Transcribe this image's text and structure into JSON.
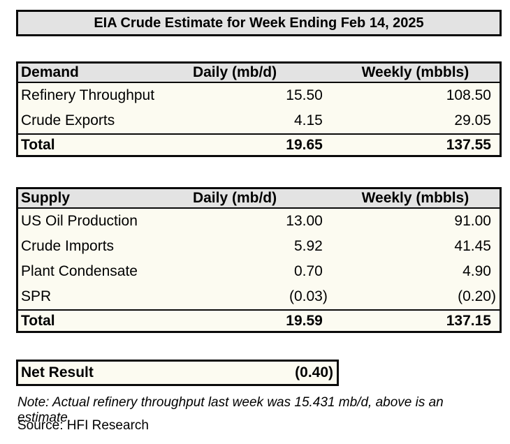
{
  "title": "EIA Crude Estimate for Week Ending Feb 14, 2025",
  "demand_table": {
    "headers": [
      "Demand",
      "Daily (mb/d)",
      "Weekly (mbbls)"
    ],
    "rows": [
      {
        "label": "Refinery Throughput",
        "daily": "15.50",
        "weekly": "108.50"
      },
      {
        "label": "Crude Exports",
        "daily": "4.15",
        "weekly": "29.05"
      }
    ],
    "total": {
      "label": "Total",
      "daily": "19.65",
      "weekly": "137.55"
    }
  },
  "supply_table": {
    "headers": [
      "Supply",
      "Daily (mb/d)",
      "Weekly (mbbls)"
    ],
    "rows": [
      {
        "label": "US Oil Production",
        "daily": "13.00",
        "weekly": "91.00"
      },
      {
        "label": "Crude Imports",
        "daily": "5.92",
        "weekly": "41.45"
      },
      {
        "label": "Plant Condensate",
        "daily": "0.70",
        "weekly": "4.90"
      },
      {
        "label": "SPR",
        "daily": "(0.03)",
        "weekly": "(0.20)"
      }
    ],
    "total": {
      "label": "Total",
      "daily": "19.59",
      "weekly": "137.15"
    }
  },
  "net_result": {
    "label": "Net Result",
    "value": "(0.40)"
  },
  "note": "Note: Actual refinery throughput last week was 15.431 mb/d, above is an estimate.",
  "source": "Source: HFI Research",
  "colors": {
    "header_bg": "#e3e3e3",
    "cell_bg": "#fcfbf1",
    "border": "#0a0a0a",
    "page_bg": "#ffffff"
  }
}
